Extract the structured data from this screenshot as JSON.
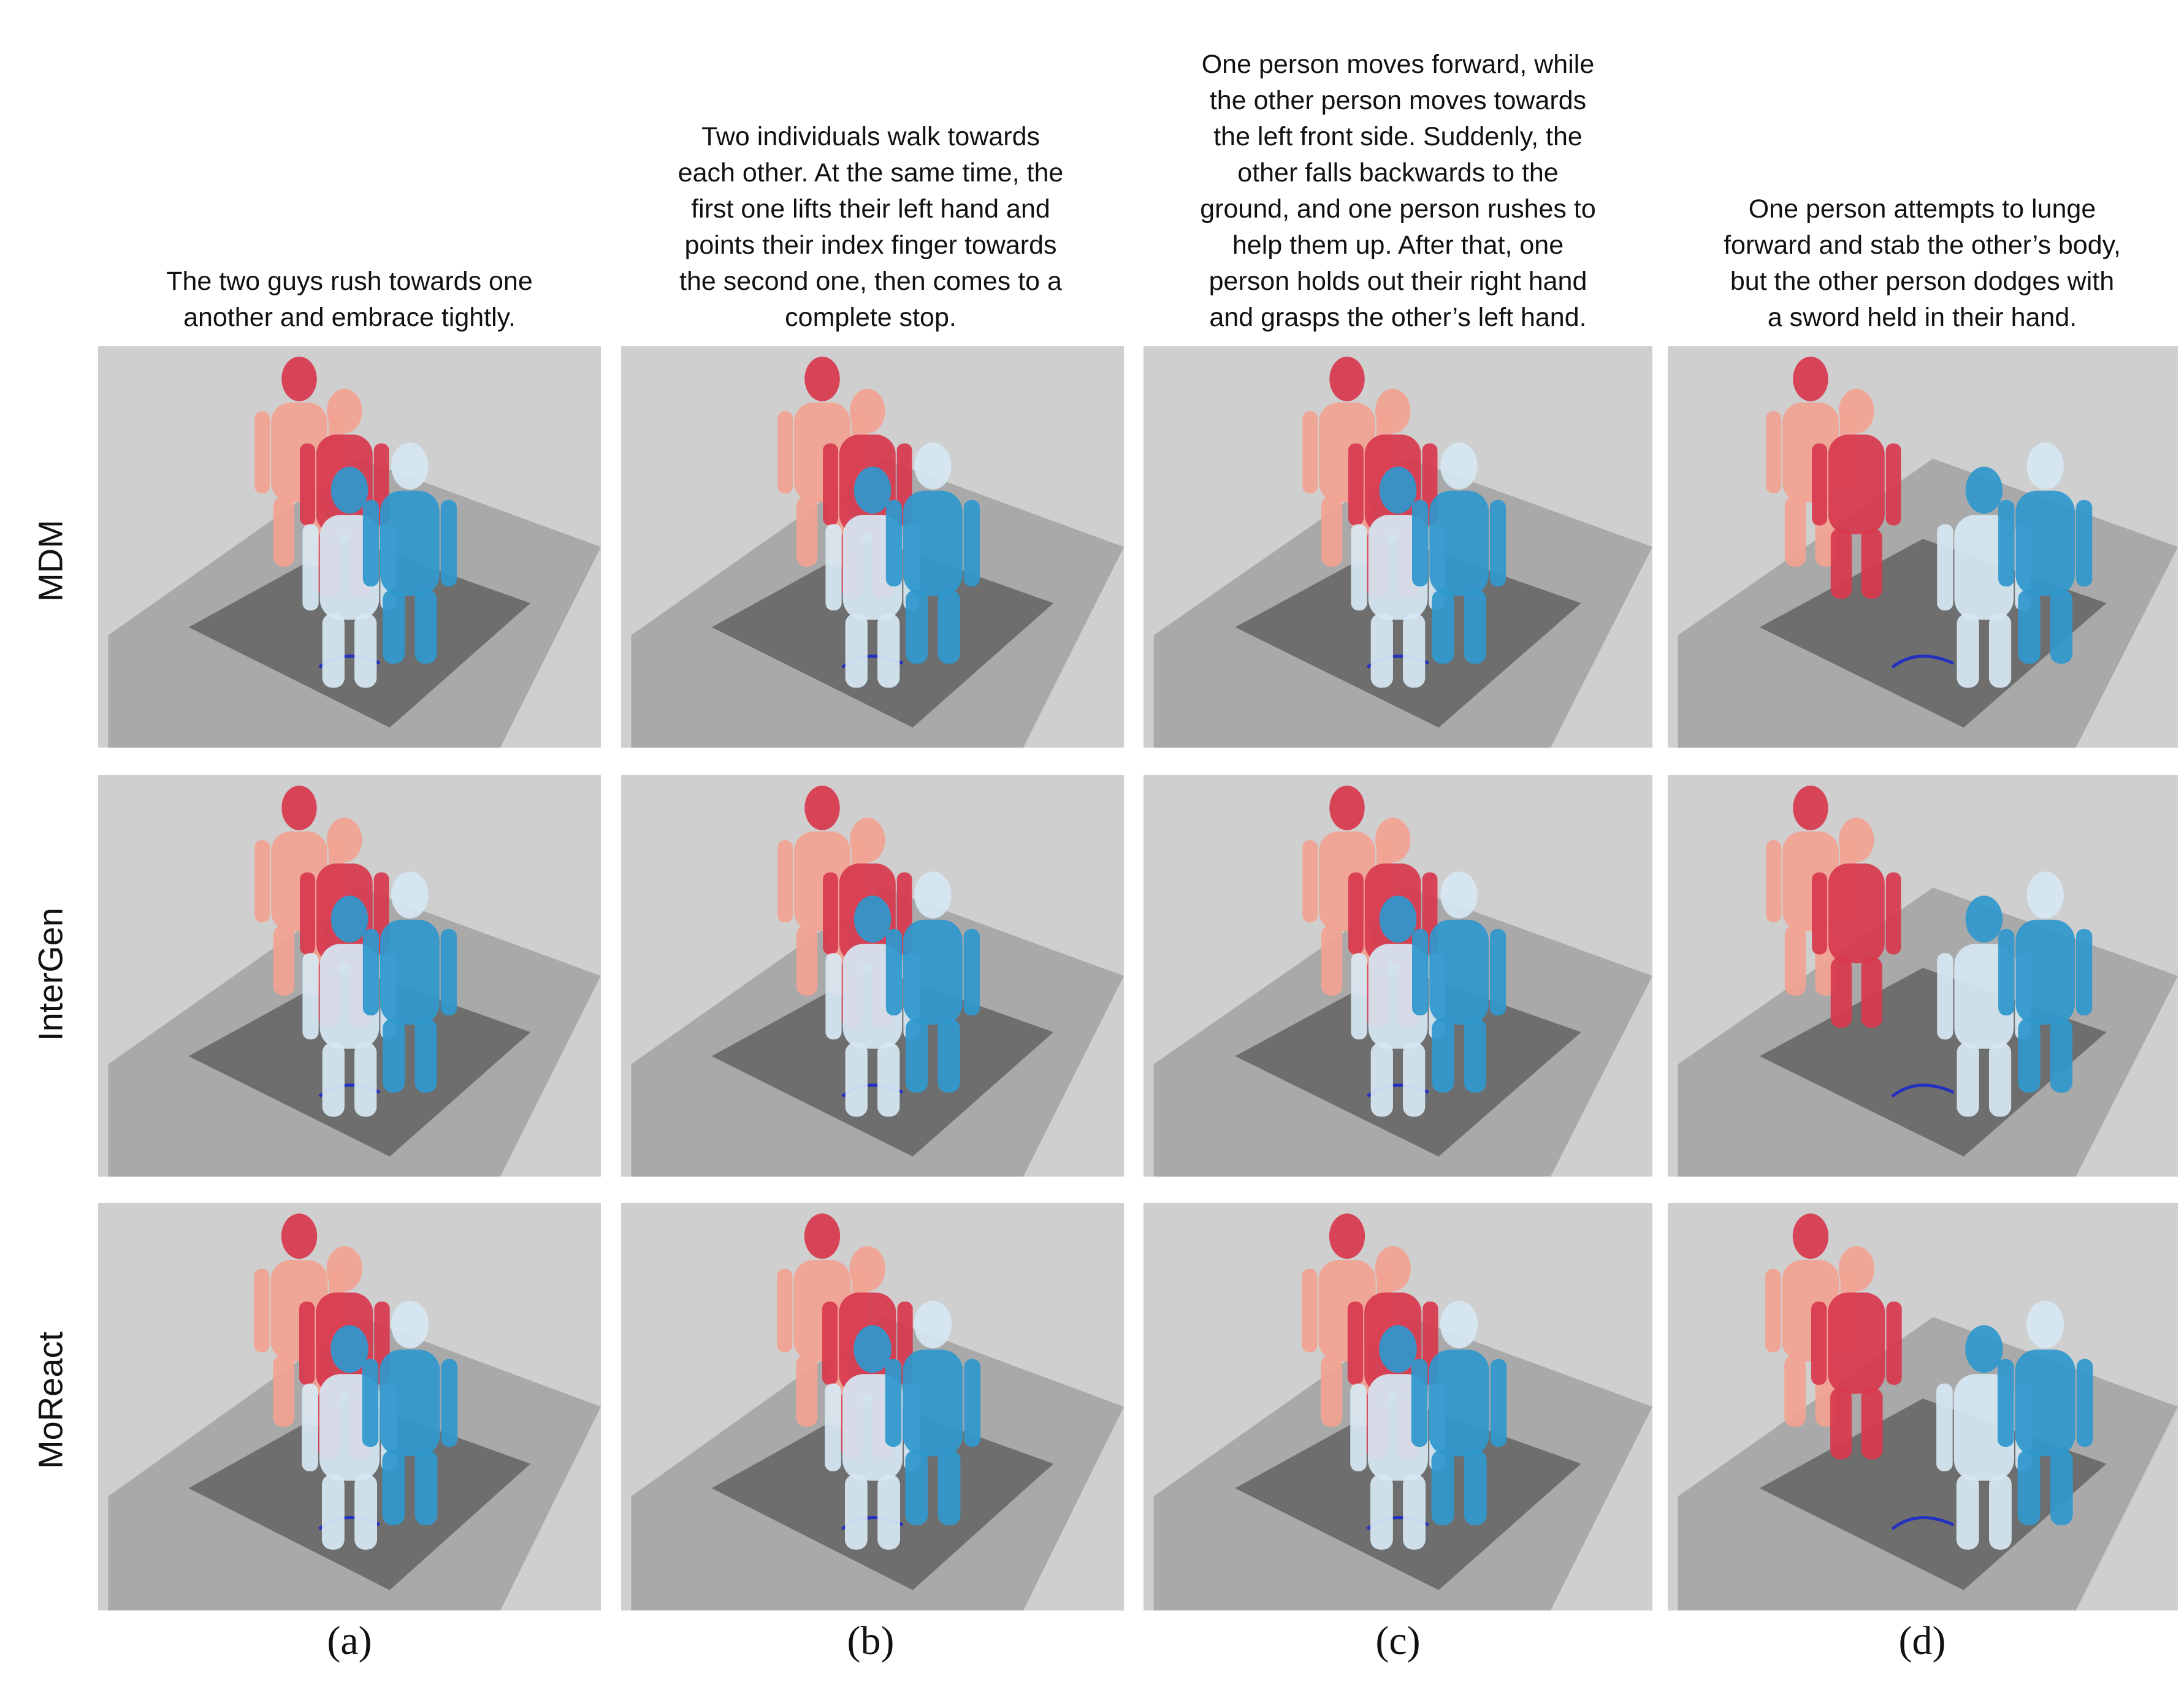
{
  "figure": {
    "captions": [
      {
        "id": "a",
        "lines": [
          "The two guys rush towards one",
          "another and embrace tightly."
        ]
      },
      {
        "id": "b",
        "lines": [
          "Two individuals walk towards",
          "each other. At the same time, the",
          "first one lifts their left hand and",
          "points their index finger towards",
          "the second one, then comes to a",
          "complete stop."
        ]
      },
      {
        "id": "c",
        "lines": [
          "One person moves forward, while",
          "the other person moves towards",
          "the left front side. Suddenly, the",
          "other falls backwards to the",
          "ground, and one person rushes to",
          "help them up. After that, one",
          "person holds out their right hand",
          "and grasps the other’s left hand."
        ]
      },
      {
        "id": "d",
        "lines": [
          "One person attempts to lunge",
          "forward and stab the other’s body,",
          "but the other person dodges with",
          "a sword held in their hand."
        ]
      }
    ],
    "row_labels": [
      "MDM",
      "InterGen",
      "MoReact"
    ],
    "column_labels": [
      "(a)",
      "(b)",
      "(c)",
      "(d)"
    ],
    "colors": {
      "background": "#cfcfcf",
      "ground_plane": "#a9a9a9",
      "floor_patch": "#6e6e6e",
      "agent_a_light": "#f2a291",
      "agent_a_dark": "#d8394d",
      "agent_b_light": "#d6e7f3",
      "agent_b_dark": "#2f98cc",
      "trajectory": "#2430c0"
    }
  }
}
